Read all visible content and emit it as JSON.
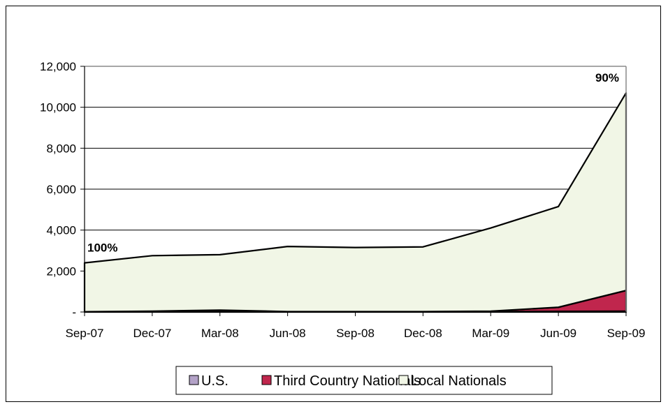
{
  "chart_data": {
    "type": "area",
    "stacked": true,
    "categories": [
      "Sep-07",
      "Dec-07",
      "Mar-08",
      "Jun-08",
      "Sep-08",
      "Dec-08",
      "Mar-09",
      "Jun-09",
      "Sep-09"
    ],
    "series": [
      {
        "name": "U.S.",
        "color": "#b3a2c7",
        "values": [
          10,
          20,
          30,
          10,
          10,
          10,
          20,
          30,
          40
        ]
      },
      {
        "name": "Third Country Nationals",
        "color": "#c0264d",
        "values": [
          0,
          20,
          60,
          10,
          10,
          10,
          20,
          200,
          1010
        ]
      },
      {
        "name": "Local Nationals",
        "color": "#f1f6e6",
        "values": [
          2390,
          2710,
          2710,
          3180,
          3130,
          3160,
          4060,
          4920,
          9650
        ]
      }
    ],
    "yticks": [
      0,
      2000,
      4000,
      6000,
      8000,
      10000,
      12000
    ],
    "ytick_labels": [
      "-",
      "2,000",
      "4,000",
      "6,000",
      "8,000",
      "10,000",
      "12,000"
    ],
    "ylim": [
      0,
      12000
    ],
    "grid": true,
    "legend_position": "bottom",
    "annotations": [
      {
        "text": "100%",
        "category": "Sep-07"
      },
      {
        "text": "90%",
        "category": "Sep-09"
      }
    ]
  }
}
